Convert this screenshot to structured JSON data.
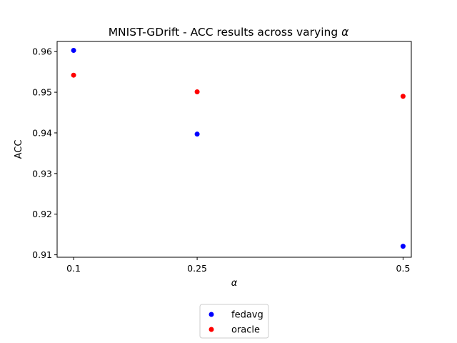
{
  "chart_data": {
    "type": "scatter",
    "title_text": "MNIST-GDrift - ACC results across varying ",
    "title_symbol": "α",
    "xlabel": "α",
    "ylabel": "ACC",
    "x": [
      0.1,
      0.25,
      0.5
    ],
    "x_ticks": [
      "0.1",
      "0.25",
      "0.5"
    ],
    "y_ticks": [
      0.91,
      0.92,
      0.93,
      0.94,
      0.95,
      0.96
    ],
    "y_tick_labels": [
      "0.91",
      "0.92",
      "0.93",
      "0.94",
      "0.95",
      "0.96"
    ],
    "xlim": [
      0.08,
      0.51
    ],
    "ylim": [
      0.9094,
      0.9625
    ],
    "grid": false,
    "legend_position": "below-center",
    "series": [
      {
        "name": "fedavg",
        "color": "#0000ff",
        "values": [
          0.9603,
          0.9397,
          0.9121
        ]
      },
      {
        "name": "oracle",
        "color": "#ff0000",
        "values": [
          0.9542,
          0.9501,
          0.949
        ]
      }
    ]
  }
}
